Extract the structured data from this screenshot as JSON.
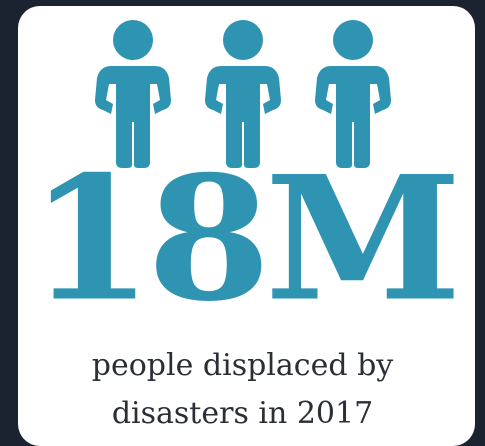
{
  "infographic": {
    "figure_count": 3,
    "figure_icon": "person-icon",
    "accent_color": "#2f94b1",
    "background_color": "#1b2230",
    "card_color": "#ffffff",
    "number": "18M",
    "caption_line1": "people displaced by",
    "caption_line2": "disasters in 2017"
  }
}
